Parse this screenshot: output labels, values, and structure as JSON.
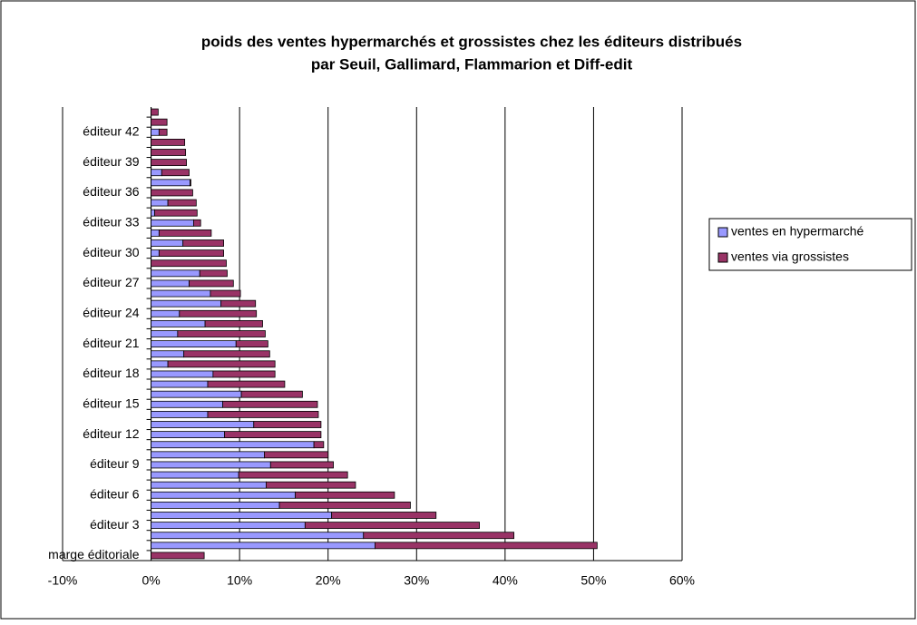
{
  "chart_data": {
    "type": "stacked_barh",
    "title": "poids des ventes hypermarchés et grossistes chez les éditeurs distribués",
    "subtitle": "par Seuil, Gallimard, Flammarion et Diff-edit",
    "categories": [
      "marge éditoriale",
      null,
      null,
      "éditeur 3",
      null,
      null,
      "éditeur 6",
      null,
      null,
      "éditeur 9",
      null,
      null,
      "éditeur 12",
      null,
      null,
      "éditeur 15",
      null,
      null,
      "éditeur 18",
      null,
      null,
      "éditeur 21",
      null,
      null,
      "éditeur 24",
      null,
      null,
      "éditeur 27",
      null,
      null,
      "éditeur 30",
      null,
      null,
      "éditeur 33",
      null,
      null,
      "éditeur 36",
      null,
      null,
      "éditeur 39",
      null,
      null,
      "éditeur 42",
      null,
      null
    ],
    "series": [
      {
        "name": "ventes en hypermarché",
        "color": "#9999ff",
        "values": [
          0,
          25.3,
          24,
          17.4,
          20.4,
          14.5,
          16.3,
          13,
          9.9,
          13.5,
          12.8,
          18.4,
          8.3,
          11.6,
          6.4,
          8.1,
          10.2,
          6.4,
          7,
          1.9,
          3.7,
          9.6,
          3,
          6.1,
          3.2,
          7.9,
          6.7,
          4.3,
          5.5,
          0,
          0.9,
          3.6,
          0.9,
          4.8,
          0.4,
          1.9,
          0,
          4.4,
          1.2,
          0,
          0,
          0,
          0.9,
          0,
          0
        ]
      },
      {
        "name": "ventes via grossistes",
        "color": "#993366",
        "values": [
          6,
          25.1,
          17,
          19.7,
          11.8,
          14.8,
          11.2,
          10.1,
          12.3,
          7.1,
          7.2,
          1.1,
          10.9,
          7.6,
          12.5,
          10.7,
          6.9,
          8.7,
          7,
          12.1,
          9.7,
          3.6,
          9.9,
          6.5,
          8.7,
          3.9,
          3.4,
          5,
          3.1,
          8.5,
          7.3,
          4.6,
          5.9,
          0.8,
          4.8,
          3.2,
          4.7,
          0.1,
          3.1,
          4,
          3.9,
          3.8,
          0.9,
          1.8,
          0.8
        ]
      }
    ],
    "xlim": [
      -10,
      60
    ],
    "xticks": [
      {
        "value": -10,
        "label": "-10%"
      },
      {
        "value": 0,
        "label": "0%"
      },
      {
        "value": 10,
        "label": "10%"
      },
      {
        "value": 20,
        "label": "20%"
      },
      {
        "value": 30,
        "label": "30%"
      },
      {
        "value": 40,
        "label": "40%"
      },
      {
        "value": 50,
        "label": "50%"
      },
      {
        "value": 60,
        "label": "60%"
      }
    ],
    "grid": true,
    "legend": "right"
  }
}
